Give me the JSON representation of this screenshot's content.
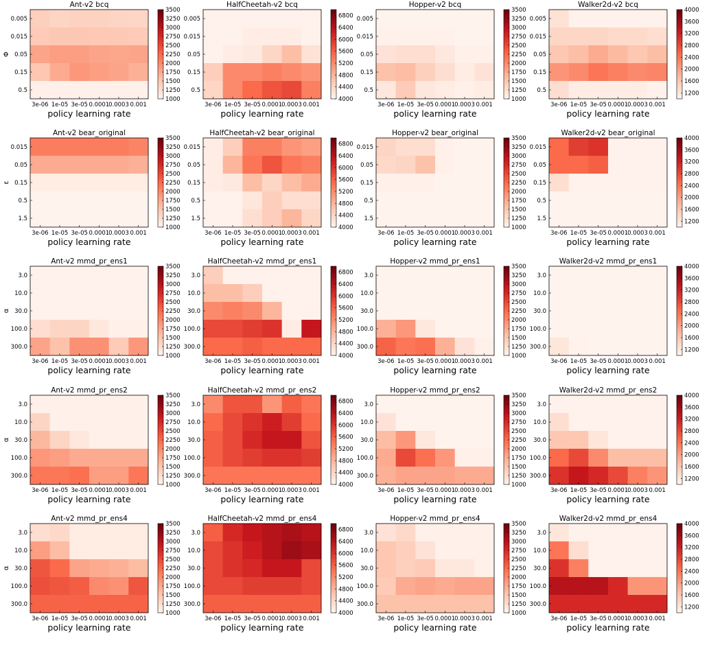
{
  "colormap": {
    "name": "Reds",
    "stops": [
      "#fff5f0",
      "#fcbba1",
      "#fb6a4a",
      "#cb181d",
      "#67000d"
    ]
  },
  "common": {
    "xlabel": "policy learning rate",
    "xticks": [
      "3e-06",
      "1e-05",
      "3e-05",
      "0.0001",
      "0.0003",
      "0.001"
    ]
  },
  "yaxes": {
    "bcq": {
      "label": "Φ",
      "ticks": [
        "0.005",
        "0.015",
        "0.05",
        "0.15",
        "0.5"
      ]
    },
    "bear": {
      "label": "ε",
      "ticks": [
        "0.015",
        "0.05",
        "0.15",
        "0.5",
        "1.5"
      ]
    },
    "mmd": {
      "label": "α",
      "ticks": [
        "3.0",
        "10.0",
        "30.0",
        "100.0",
        "300.0"
      ]
    }
  },
  "colorbars": {
    "Ant-v2": {
      "min": 1000,
      "max": 3500,
      "ticks": [
        "1000",
        "1250",
        "1500",
        "1750",
        "2000",
        "2250",
        "2500",
        "2750",
        "3000",
        "3250",
        "3500"
      ]
    },
    "HalfCheetah-v2": {
      "min": 4000,
      "max": 7000,
      "ticks": [
        "4000",
        "4400",
        "4800",
        "5200",
        "5600",
        "6000",
        "6400",
        "6800"
      ]
    },
    "Hopper-v2": {
      "min": 1000,
      "max": 3500,
      "ticks": [
        "1000",
        "1250",
        "1500",
        "1750",
        "2000",
        "2250",
        "2500",
        "2750",
        "3000",
        "3250",
        "3500"
      ]
    },
    "Walker2d-v2": {
      "min": 1000,
      "max": 4000,
      "ticks": [
        "1200",
        "1600",
        "2000",
        "2400",
        "2800",
        "3200",
        "3600",
        "4000"
      ]
    }
  },
  "chart_data": [
    {
      "type": "heatmap",
      "title": "Ant-v2 bcq",
      "env": "Ant-v2",
      "yaxis": "bcq",
      "values": [
        [
          1400,
          1350,
          1380,
          1380,
          1350,
          1330
        ],
        [
          1450,
          1480,
          1480,
          1470,
          1470,
          1450
        ],
        [
          1800,
          1850,
          1850,
          1800,
          1780,
          1800
        ],
        [
          1500,
          1750,
          1900,
          1850,
          1800,
          1700
        ],
        [
          1050,
          1050,
          1050,
          1050,
          1050,
          1050
        ]
      ]
    },
    {
      "type": "heatmap",
      "title": "HalfCheetah-v2 bcq",
      "env": "HalfCheetah-v2",
      "yaxis": "bcq",
      "values": [
        [
          4050,
          4050,
          4050,
          4050,
          4050,
          4050
        ],
        [
          4050,
          4050,
          4100,
          4100,
          4100,
          4050
        ],
        [
          4050,
          4100,
          4150,
          4400,
          4700,
          4250
        ],
        [
          4500,
          5200,
          5200,
          5300,
          5200,
          5100
        ],
        [
          4400,
          5200,
          5500,
          5700,
          5800,
          5300
        ]
      ]
    },
    {
      "type": "heatmap",
      "title": "Hopper-v2 bcq",
      "env": "Hopper-v2",
      "yaxis": "bcq",
      "values": [
        [
          1020,
          1020,
          1020,
          1020,
          1020,
          1020
        ],
        [
          1050,
          1050,
          1050,
          1050,
          1020,
          1020
        ],
        [
          1200,
          1250,
          1250,
          1150,
          1050,
          1050
        ],
        [
          1550,
          1600,
          1400,
          1250,
          1100,
          1200
        ],
        [
          1150,
          1450,
          1150,
          1100,
          1050,
          1100
        ]
      ]
    },
    {
      "type": "heatmap",
      "title": "Walker2d-v2 bcq",
      "env": "Walker2d-v2",
      "yaxis": "bcq",
      "values": [
        [
          1250,
          1050,
          1050,
          1050,
          1050,
          1050
        ],
        [
          1400,
          1400,
          1400,
          1350,
          1350,
          1300
        ],
        [
          1600,
          1700,
          1900,
          1750,
          1600,
          1700
        ],
        [
          2100,
          2200,
          2400,
          2300,
          2200,
          2250
        ],
        [
          1300,
          1100,
          1100,
          1100,
          1100,
          1050
        ]
      ]
    },
    {
      "type": "heatmap",
      "title": "Ant-v2 bear_original",
      "env": "Ant-v2",
      "yaxis": "bear",
      "values": [
        [
          2100,
          2100,
          2100,
          2100,
          2100,
          2050
        ],
        [
          1750,
          1750,
          1750,
          1750,
          1750,
          1700
        ],
        [
          1100,
          1100,
          1100,
          1100,
          1100,
          1100
        ],
        [
          1020,
          1020,
          1020,
          1020,
          1020,
          1020
        ],
        [
          1020,
          1020,
          1020,
          1020,
          1020,
          1020
        ]
      ]
    },
    {
      "type": "heatmap",
      "title": "HalfCheetah-v2 bear_original",
      "env": "HalfCheetah-v2",
      "yaxis": "bear",
      "values": [
        [
          4100,
          4500,
          5300,
          5300,
          5100,
          5000
        ],
        [
          4100,
          4800,
          5400,
          5700,
          5400,
          5300
        ],
        [
          4100,
          4150,
          4700,
          4400,
          4700,
          4900
        ],
        [
          4050,
          4050,
          4200,
          4500,
          4300,
          4300
        ],
        [
          4050,
          4050,
          4300,
          4500,
          4800,
          4400
        ]
      ]
    },
    {
      "type": "heatmap",
      "title": "Hopper-v2 bear_original",
      "env": "Hopper-v2",
      "yaxis": "bear",
      "values": [
        [
          1350,
          1250,
          1250,
          1050,
          1020,
          1020
        ],
        [
          1300,
          1350,
          1550,
          1050,
          1020,
          1020
        ],
        [
          1050,
          1050,
          1050,
          1020,
          1020,
          1020
        ],
        [
          1020,
          1020,
          1020,
          1020,
          1020,
          1020
        ],
        [
          1020,
          1020,
          1020,
          1020,
          1020,
          1020
        ]
      ]
    },
    {
      "type": "heatmap",
      "title": "Walker2d-v2 bear_original",
      "env": "Walker2d-v2",
      "yaxis": "bear",
      "values": [
        [
          2500,
          2900,
          3000,
          1050,
          1050,
          1050
        ],
        [
          2500,
          2500,
          2600,
          1050,
          1050,
          1050
        ],
        [
          1300,
          1050,
          1050,
          1050,
          1050,
          1050
        ],
        [
          1020,
          1020,
          1020,
          1020,
          1020,
          1020
        ],
        [
          1020,
          1020,
          1020,
          1020,
          1020,
          1020
        ]
      ]
    },
    {
      "type": "heatmap",
      "title": "Ant-v2 mmd_pr_ens1",
      "env": "Ant-v2",
      "yaxis": "mmd",
      "values": [
        [
          1030,
          1030,
          1030,
          1030,
          1030,
          1030
        ],
        [
          1030,
          1030,
          1030,
          1030,
          1030,
          1030
        ],
        [
          1030,
          1030,
          1030,
          1030,
          1030,
          1030
        ],
        [
          1250,
          1350,
          1350,
          1150,
          1050,
          1050
        ],
        [
          1800,
          1550,
          1950,
          1950,
          1450,
          1900
        ]
      ]
    },
    {
      "type": "heatmap",
      "title": "HalfCheetah-v2 mmd_pr_ens1",
      "env": "HalfCheetah-v2",
      "yaxis": "mmd",
      "values": [
        [
          4500,
          4050,
          4050,
          4050,
          4050,
          4050
        ],
        [
          4700,
          4700,
          4500,
          4050,
          4050,
          4050
        ],
        [
          5200,
          5300,
          5200,
          4800,
          4050,
          4050
        ],
        [
          5800,
          5800,
          5900,
          6000,
          4100,
          6300
        ],
        [
          5500,
          5500,
          5600,
          5500,
          5500,
          5500
        ]
      ]
    },
    {
      "type": "heatmap",
      "title": "Hopper-v2 mmd_pr_ens1",
      "env": "Hopper-v2",
      "yaxis": "mmd",
      "values": [
        [
          1020,
          1020,
          1020,
          1020,
          1020,
          1020
        ],
        [
          1020,
          1020,
          1020,
          1020,
          1020,
          1020
        ],
        [
          1020,
          1020,
          1020,
          1020,
          1020,
          1020
        ],
        [
          1700,
          1900,
          1150,
          1020,
          1020,
          1020
        ],
        [
          2300,
          2150,
          2200,
          1700,
          1200,
          1050
        ]
      ]
    },
    {
      "type": "heatmap",
      "title": "Walker2d-v2 mmd_pr_ens1",
      "env": "Walker2d-v2",
      "yaxis": "mmd",
      "values": [
        [
          1020,
          1020,
          1020,
          1020,
          1020,
          1020
        ],
        [
          1020,
          1020,
          1020,
          1020,
          1020,
          1020
        ],
        [
          1020,
          1020,
          1020,
          1020,
          1020,
          1020
        ],
        [
          1020,
          1020,
          1020,
          1020,
          1020,
          1020
        ],
        [
          1200,
          1050,
          1020,
          1020,
          1020,
          1020
        ]
      ]
    },
    {
      "type": "heatmap",
      "title": "Ant-v2 mmd_pr_ens2",
      "env": "Ant-v2",
      "yaxis": "mmd",
      "values": [
        [
          1050,
          1050,
          1050,
          1050,
          1050,
          1050
        ],
        [
          1350,
          1050,
          1050,
          1050,
          1050,
          1050
        ],
        [
          1650,
          1350,
          1150,
          1050,
          1050,
          1050
        ],
        [
          1900,
          1850,
          1750,
          1750,
          1750,
          1750
        ],
        [
          2150,
          2150,
          2200,
          1850,
          1850,
          2150
        ]
      ]
    },
    {
      "type": "heatmap",
      "title": "HalfCheetah-v2 mmd_pr_ens2",
      "env": "HalfCheetah-v2",
      "yaxis": "mmd",
      "values": [
        [
          5200,
          5700,
          5700,
          5100,
          5600,
          5400
        ],
        [
          5500,
          5800,
          6000,
          6200,
          5900,
          5500
        ],
        [
          5600,
          5800,
          6100,
          6300,
          6300,
          5700
        ],
        [
          5600,
          5800,
          5900,
          6000,
          6000,
          5900
        ],
        [
          5400,
          5400,
          5400,
          5400,
          5400,
          5400
        ]
      ]
    },
    {
      "type": "heatmap",
      "title": "Hopper-v2 mmd_pr_ens2",
      "env": "Hopper-v2",
      "yaxis": "mmd",
      "values": [
        [
          1020,
          1020,
          1020,
          1020,
          1020,
          1020
        ],
        [
          1200,
          1020,
          1020,
          1020,
          1020,
          1020
        ],
        [
          1600,
          1900,
          1150,
          1020,
          1020,
          1020
        ],
        [
          1750,
          2500,
          2200,
          1900,
          1050,
          1050
        ],
        [
          1700,
          1800,
          1800,
          1800,
          1750,
          1750
        ]
      ]
    },
    {
      "type": "heatmap",
      "title": "Walker2d-v2 mmd_pr_ens2",
      "env": "Walker2d-v2",
      "yaxis": "mmd",
      "values": [
        [
          1050,
          1050,
          1050,
          1050,
          1050,
          1050
        ],
        [
          1300,
          1050,
          1050,
          1050,
          1050,
          1050
        ],
        [
          1600,
          1600,
          1200,
          1050,
          1050,
          1050
        ],
        [
          2500,
          2800,
          2200,
          1700,
          1700,
          1700
        ],
        [
          3000,
          3300,
          3100,
          2800,
          2300,
          2100
        ]
      ]
    },
    {
      "type": "heatmap",
      "title": "Ant-v2 mmd_pr_ens4",
      "env": "Ant-v2",
      "yaxis": "mmd",
      "values": [
        [
          1250,
          1300,
          1100,
          1100,
          1100,
          1100
        ],
        [
          1850,
          1600,
          1100,
          1100,
          1100,
          1100
        ],
        [
          2400,
          2250,
          1800,
          1750,
          1700,
          1600
        ],
        [
          2450,
          2400,
          2350,
          2000,
          1950,
          2400
        ],
        [
          2300,
          2300,
          2300,
          2300,
          2300,
          2300
        ]
      ]
    },
    {
      "type": "heatmap",
      "title": "HalfCheetah-v2 mmd_pr_ens4",
      "env": "HalfCheetah-v2",
      "yaxis": "mmd",
      "values": [
        [
          5600,
          6100,
          6300,
          6400,
          6500,
          6400
        ],
        [
          5800,
          6000,
          6200,
          6400,
          6600,
          6500
        ],
        [
          5800,
          6000,
          6100,
          6300,
          6300,
          5800
        ],
        [
          5800,
          5800,
          5900,
          5900,
          5900,
          5800
        ],
        [
          5600,
          5600,
          5600,
          5600,
          5600,
          5600
        ]
      ]
    },
    {
      "type": "heatmap",
      "title": "Hopper-v2 mmd_pr_ens4",
      "env": "Hopper-v2",
      "yaxis": "mmd",
      "values": [
        [
          1200,
          1300,
          1050,
          1050,
          1050,
          1050
        ],
        [
          1500,
          1400,
          1200,
          1050,
          1050,
          1050
        ],
        [
          1500,
          1400,
          1450,
          1150,
          1150,
          1050
        ],
        [
          1450,
          1750,
          1800,
          1750,
          1800,
          1800
        ],
        [
          1550,
          1550,
          1550,
          1550,
          1550,
          1550
        ]
      ]
    },
    {
      "type": "heatmap",
      "title": "Walker2d-v2 mmd_pr_ens4",
      "env": "Walker2d-v2",
      "yaxis": "mmd",
      "values": [
        [
          1200,
          1050,
          1050,
          1050,
          1050,
          1050
        ],
        [
          2400,
          1300,
          1050,
          1050,
          1050,
          1050
        ],
        [
          3000,
          2300,
          1050,
          1050,
          1050,
          1050
        ],
        [
          3400,
          3400,
          3400,
          3100,
          2100,
          2100
        ],
        [
          3100,
          3100,
          3100,
          3100,
          3100,
          3100
        ]
      ]
    }
  ]
}
